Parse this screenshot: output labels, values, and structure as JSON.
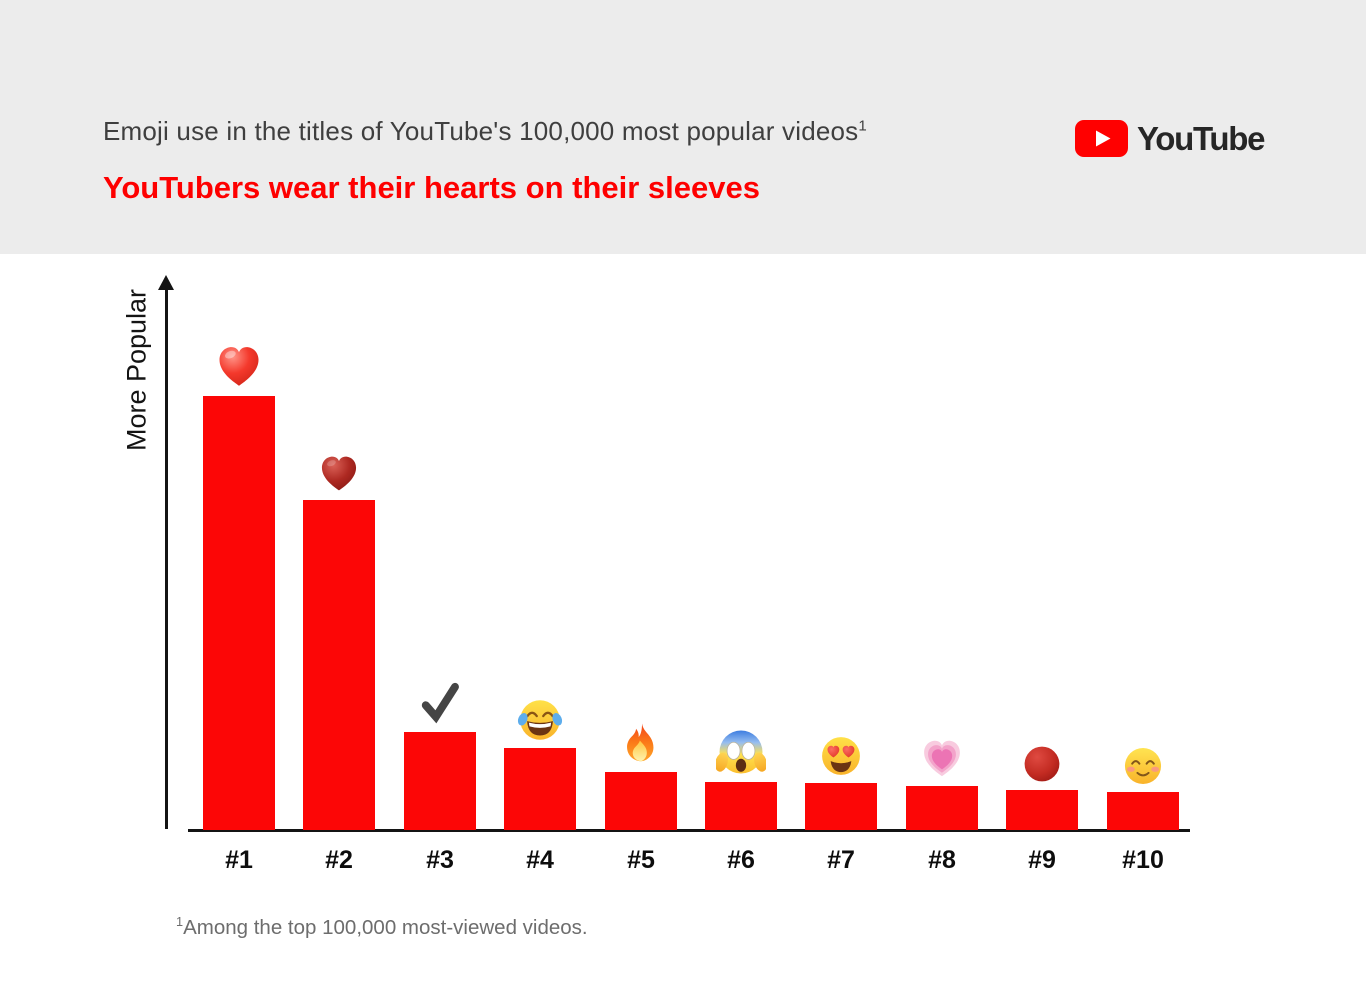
{
  "header": {
    "title": "Emoji use in the titles of YouTube's 100,000 most popular videos",
    "title_superscript": "1",
    "subtitle": "YouTubers wear their hearts on their sleeves",
    "logo_text": "YouTube"
  },
  "footnote": {
    "superscript": "1",
    "text": "Among the top 100,000 most-viewed videos."
  },
  "colors": {
    "header_bg": "#ececec",
    "title_text": "#3f3f3f",
    "subtitle_red": "#fe0000",
    "bar_red": "#fc0606",
    "axis_black": "#141414",
    "footnote_gray": "#6d6d6d",
    "logo_red": "#ff0000",
    "logo_text": "#262626"
  },
  "chart_data": {
    "type": "bar",
    "title": "Emoji use in the titles of YouTube's 100,000 most popular videos",
    "subtitle": "YouTubers wear their hearts on their sleeves",
    "categories": [
      "#1",
      "#2",
      "#3",
      "#4",
      "#5",
      "#6",
      "#7",
      "#8",
      "#9",
      "#10"
    ],
    "values": [
      100,
      76,
      22.6,
      18.9,
      13.4,
      11.1,
      10.8,
      10.1,
      9.2,
      8.8
    ],
    "values_unit": "relative popularity, % of tallest bar (no numeric axis shown in chart)",
    "emoji_chars": [
      "❤️",
      "♥️",
      "✔️",
      "😂",
      "🔥",
      "😱",
      "😍",
      "💗",
      "🔴",
      "☺️"
    ],
    "emoji_names": [
      "red-heart",
      "heart-suit",
      "check-mark",
      "face-with-tears-of-joy",
      "fire",
      "face-screaming-in-fear",
      "smiling-face-with-heart-eyes",
      "growing-heart",
      "red-circle",
      "smiling-face"
    ],
    "xlabel": "",
    "ylabel": "More Popular",
    "ylim": [
      0,
      100
    ],
    "grid": false,
    "legend": false,
    "bar_color": "#fc0606"
  }
}
